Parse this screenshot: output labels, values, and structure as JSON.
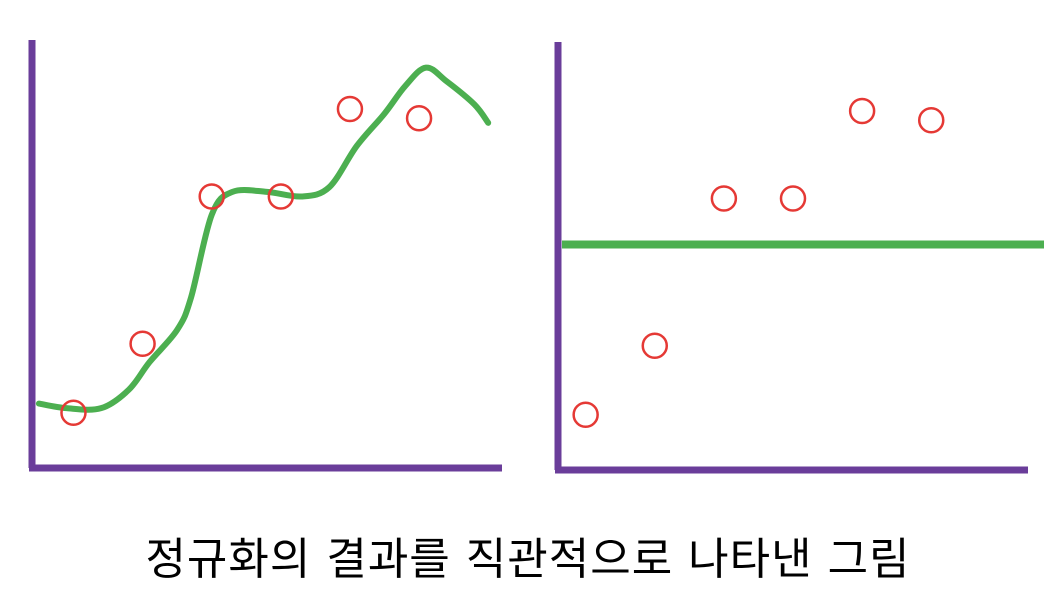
{
  "caption": "정규화의 결과를 직관적으로 나타낸 그림",
  "colors": {
    "axis": "#6a3d9a",
    "fit_line": "#4caf50",
    "points": "#e53935",
    "caption": "#000000"
  },
  "chart_data": [
    {
      "type": "scatter",
      "panel": "left",
      "fit": "overfit-curve",
      "x": [
        1,
        2,
        3,
        4,
        5,
        6
      ],
      "y": [
        1.2,
        2.7,
        5.9,
        5.9,
        7.8,
        7.6
      ],
      "xlim": [
        0.4,
        7.2
      ],
      "ylim": [
        0,
        9.3
      ],
      "curve": {
        "x": [
          0.5,
          0.9,
          1.4,
          1.8,
          2.1,
          2.5,
          2.7,
          3.0,
          3.3,
          3.8,
          4.3,
          4.7,
          5.1,
          5.5,
          5.8,
          6.1,
          6.4,
          6.8,
          7.0
        ],
        "y": [
          1.4,
          1.3,
          1.3,
          1.7,
          2.3,
          3.0,
          3.7,
          5.5,
          6.0,
          6.0,
          5.9,
          6.1,
          7.0,
          7.7,
          8.3,
          8.7,
          8.4,
          7.9,
          7.5
        ]
      }
    },
    {
      "type": "scatter",
      "panel": "right",
      "fit": "horizontal-line",
      "x": [
        1,
        2,
        3,
        4,
        5,
        6
      ],
      "y": [
        1.2,
        2.7,
        5.9,
        5.9,
        7.8,
        7.6
      ],
      "xlim": [
        0.6,
        7.4
      ],
      "ylim": [
        0,
        9.3
      ],
      "line_y": 4.9
    }
  ]
}
